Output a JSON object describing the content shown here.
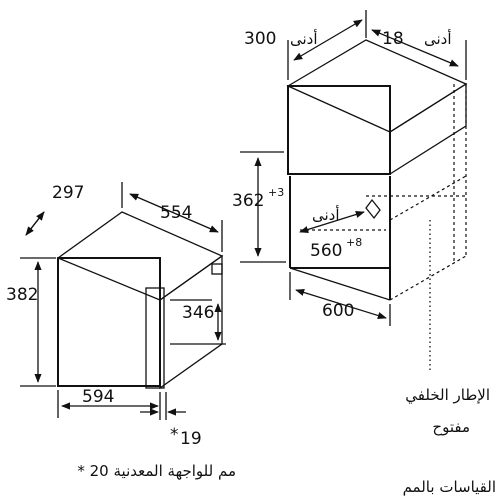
{
  "microwave": {
    "depth": "297",
    "width_top": "554",
    "height": "382",
    "inner_height": "346",
    "width_front": "594",
    "front_panel": "19",
    "front_panel_mark": "*"
  },
  "niche": {
    "min_label": "أدنى",
    "min_width": "300",
    "min_gap": "18",
    "height_value": "362",
    "height_tol": "+3",
    "depth_value": "560",
    "depth_tol": "+8",
    "width_value": "600"
  },
  "notes": {
    "back_frame_line1": "الإطار الخلفي",
    "back_frame_line2": "مفتوح",
    "metal_front_note": "* 20 مم للواجهة المعدنية",
    "units_note": "القياسات بالمم"
  }
}
